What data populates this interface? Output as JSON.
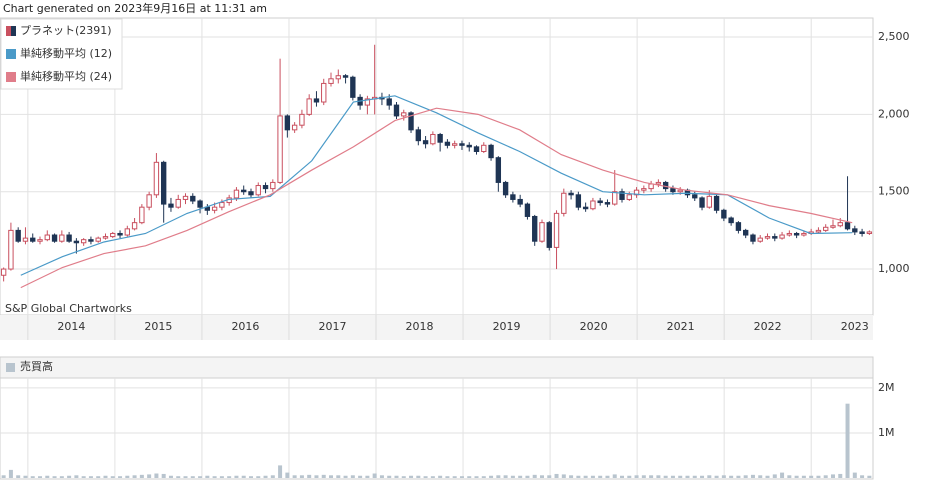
{
  "chart_data": {
    "type": "candlestick",
    "title": "Chart generated on 2023年9月16日 at 11:31 am",
    "annotation": "S&P Global Chartworks",
    "xlim": [
      2013.68,
      2023.71
    ],
    "xticks": [
      2014,
      2015,
      2016,
      2017,
      2018,
      2019,
      2020,
      2021,
      2022,
      2023
    ],
    "ylim": [
      703,
      2623
    ],
    "yticks": [
      {
        "value": 1000,
        "label": "1,000"
      },
      {
        "value": 1500,
        "label": "1,500"
      },
      {
        "value": 2000,
        "label": "2,000"
      },
      {
        "value": 2500,
        "label": "2,500"
      }
    ],
    "grid": true,
    "series": [
      {
        "name": "プラネット(2391)",
        "color": "#c9505f",
        "down_color": "#1f3554",
        "open": [
          960,
          1000,
          1250,
          1180,
          1200,
          1180,
          1190,
          1220,
          1180,
          1220,
          1180,
          1170,
          1190,
          1180,
          1200,
          1210,
          1230,
          1220,
          1260,
          1300,
          1400,
          1480,
          1690,
          1420,
          1400,
          1450,
          1470,
          1440,
          1400,
          1380,
          1400,
          1430,
          1460,
          1510,
          1500,
          1480,
          1540,
          1520,
          1560,
          1990,
          1900,
          1930,
          2000,
          2100,
          2080,
          2200,
          2230,
          2250,
          2240,
          2110,
          2060,
          2100,
          2110,
          2100,
          2060,
          1990,
          2010,
          1900,
          1830,
          1810,
          1870,
          1820,
          1800,
          1810,
          1800,
          1790,
          1760,
          1800,
          1720,
          1560,
          1480,
          1450,
          1420,
          1340,
          1180,
          1300,
          1140,
          1360,
          1490,
          1480,
          1400,
          1390,
          1440,
          1430,
          1420,
          1500,
          1450,
          1480,
          1510,
          1520,
          1550,
          1560,
          1520,
          1500,
          1510,
          1480,
          1460,
          1400,
          1470,
          1380,
          1330,
          1300,
          1250,
          1220,
          1180,
          1200,
          1210,
          1200,
          1220,
          1230,
          1220,
          1230,
          1240,
          1250,
          1270,
          1280,
          1300,
          1260,
          1240,
          1230
        ],
        "high": [
          1010,
          1300,
          1270,
          1270,
          1230,
          1210,
          1250,
          1230,
          1250,
          1240,
          1200,
          1200,
          1210,
          1210,
          1230,
          1240,
          1250,
          1280,
          1330,
          1420,
          1500,
          1750,
          1700,
          1460,
          1480,
          1490,
          1490,
          1450,
          1420,
          1430,
          1450,
          1480,
          1530,
          1540,
          1520,
          1560,
          1560,
          1580,
          2360,
          2000,
          1950,
          2030,
          2130,
          2150,
          2230,
          2270,
          2290,
          2260,
          2250,
          2130,
          2120,
          2450,
          2140,
          2130,
          2080,
          2030,
          2020,
          1920,
          1860,
          1890,
          1880,
          1840,
          1830,
          1830,
          1820,
          1800,
          1820,
          1810,
          1730,
          1570,
          1500,
          1480,
          1430,
          1350,
          1320,
          1310,
          1380,
          1520,
          1510,
          1500,
          1430,
          1460,
          1460,
          1450,
          1640,
          1520,
          1500,
          1530,
          1540,
          1570,
          1580,
          1570,
          1540,
          1530,
          1520,
          1500,
          1470,
          1510,
          1480,
          1390,
          1340,
          1310,
          1260,
          1230,
          1220,
          1230,
          1230,
          1240,
          1250,
          1240,
          1250,
          1260,
          1270,
          1290,
          1320,
          1330,
          1600,
          1280,
          1260,
          1250
        ],
        "low": [
          920,
          990,
          1170,
          1160,
          1170,
          1160,
          1180,
          1170,
          1170,
          1170,
          1100,
          1150,
          1160,
          1170,
          1190,
          1200,
          1200,
          1210,
          1250,
          1290,
          1380,
          1460,
          1300,
          1370,
          1390,
          1420,
          1420,
          1360,
          1350,
          1360,
          1380,
          1410,
          1440,
          1480,
          1460,
          1470,
          1490,
          1500,
          1550,
          1850,
          1880,
          1910,
          1990,
          2050,
          2060,
          2180,
          2200,
          2200,
          2090,
          2030,
          2000,
          2000,
          2060,
          2030,
          1970,
          1960,
          1880,
          1800,
          1780,
          1800,
          1760,
          1780,
          1780,
          1770,
          1760,
          1740,
          1750,
          1700,
          1500,
          1460,
          1430,
          1400,
          1320,
          1150,
          1170,
          1120,
          1000,
          1340,
          1450,
          1380,
          1370,
          1380,
          1410,
          1400,
          1410,
          1430,
          1440,
          1460,
          1490,
          1500,
          1530,
          1500,
          1480,
          1480,
          1460,
          1440,
          1380,
          1390,
          1360,
          1310,
          1280,
          1230,
          1200,
          1160,
          1170,
          1190,
          1180,
          1190,
          1210,
          1200,
          1210,
          1220,
          1230,
          1240,
          1260,
          1270,
          1250,
          1220,
          1210,
          1220
        ],
        "close": [
          1000,
          1250,
          1180,
          1200,
          1180,
          1190,
          1220,
          1180,
          1220,
          1180,
          1170,
          1190,
          1180,
          1200,
          1210,
          1230,
          1220,
          1260,
          1300,
          1400,
          1480,
          1690,
          1420,
          1400,
          1450,
          1470,
          1440,
          1400,
          1380,
          1400,
          1430,
          1460,
          1510,
          1500,
          1480,
          1540,
          1520,
          1560,
          1990,
          1900,
          1930,
          2000,
          2100,
          2080,
          2200,
          2230,
          2250,
          2240,
          2110,
          2060,
          2100,
          2110,
          2100,
          2060,
          1990,
          2010,
          1900,
          1830,
          1810,
          1870,
          1820,
          1800,
          1810,
          1800,
          1790,
          1760,
          1800,
          1720,
          1560,
          1480,
          1450,
          1420,
          1340,
          1180,
          1300,
          1140,
          1360,
          1490,
          1480,
          1400,
          1390,
          1440,
          1430,
          1420,
          1500,
          1450,
          1480,
          1510,
          1520,
          1550,
          1560,
          1520,
          1500,
          1510,
          1480,
          1460,
          1400,
          1470,
          1380,
          1330,
          1300,
          1250,
          1220,
          1180,
          1200,
          1210,
          1200,
          1220,
          1230,
          1220,
          1230,
          1240,
          1250,
          1270,
          1280,
          1300,
          1260,
          1240,
          1230,
          1240
        ]
      },
      {
        "name": "単純移動平均 (12)",
        "color": "#4a9ac8",
        "values": [
          960,
          1080,
          1175,
          1230,
          1360,
          1450,
          1470,
          1700,
          2080,
          2120,
          2010,
          1880,
          1760,
          1620,
          1500,
          1480,
          1490,
          1480,
          1330,
          1230,
          1235
        ]
      },
      {
        "name": "単純移動平均 (24)",
        "color": "#e07d8a",
        "values": [
          880,
          1010,
          1100,
          1150,
          1250,
          1370,
          1480,
          1640,
          1790,
          1960,
          2040,
          2000,
          1900,
          1740,
          1640,
          1560,
          1510,
          1480,
          1410,
          1360,
          1300
        ]
      }
    ],
    "volume": {
      "name": "売買高",
      "color": "#b8c4ce",
      "values": [
        60000,
        180000,
        60000,
        50000,
        40000,
        40000,
        50000,
        40000,
        40000,
        50000,
        60000,
        40000,
        40000,
        40000,
        50000,
        40000,
        40000,
        50000,
        60000,
        70000,
        80000,
        100000,
        90000,
        50000,
        40000,
        40000,
        40000,
        40000,
        50000,
        40000,
        40000,
        40000,
        50000,
        50000,
        40000,
        40000,
        50000,
        60000,
        280000,
        120000,
        60000,
        60000,
        70000,
        60000,
        70000,
        60000,
        60000,
        50000,
        60000,
        50000,
        50000,
        100000,
        60000,
        50000,
        50000,
        40000,
        50000,
        50000,
        40000,
        40000,
        50000,
        40000,
        40000,
        40000,
        40000,
        40000,
        40000,
        50000,
        60000,
        60000,
        50000,
        50000,
        50000,
        70000,
        60000,
        60000,
        90000,
        80000,
        60000,
        50000,
        50000,
        50000,
        50000,
        50000,
        80000,
        50000,
        50000,
        60000,
        60000,
        60000,
        60000,
        50000,
        50000,
        50000,
        50000,
        50000,
        50000,
        60000,
        50000,
        60000,
        50000,
        50000,
        60000,
        70000,
        60000,
        50000,
        80000,
        120000,
        60000,
        50000,
        50000,
        50000,
        50000,
        60000,
        80000,
        90000,
        1650000,
        120000,
        60000,
        50000
      ],
      "y2lim": [
        0,
        2220000
      ],
      "y2ticks": [
        {
          "value": 2000000,
          "label": "2M"
        },
        {
          "value": 1000000,
          "label": "1M"
        }
      ]
    }
  }
}
